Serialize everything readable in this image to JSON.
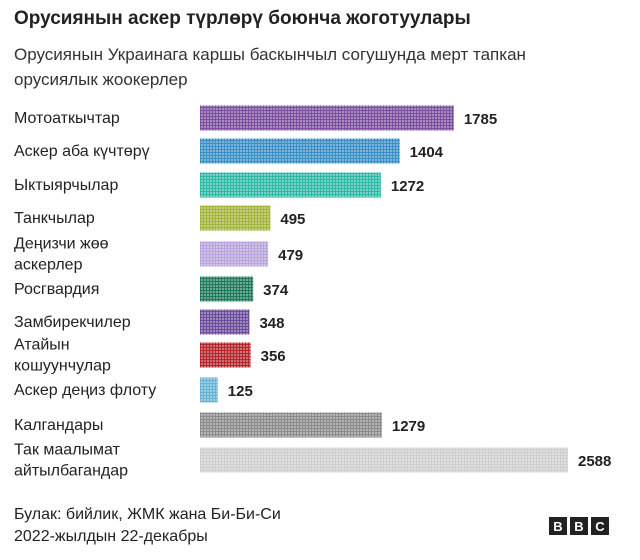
{
  "chart_data": {
    "type": "bar",
    "title": "Орусиянын аскер түрлөрү боюнча жоготуулары",
    "subtitle": "Орусиянын Украинага каршы баскынчыл согушунда мерт тапкан орусиялык жоокерлер",
    "categories": [
      [
        "Мотоаткычтар"
      ],
      [
        "Аскер аба күчтөрү"
      ],
      [
        "Ыктыярчылар"
      ],
      [
        "Танкчылар"
      ],
      [
        "Деңизчи жөө",
        "аскерлер"
      ],
      [
        "Росгвардия"
      ],
      [
        "Замбирекчилер"
      ],
      [
        "Атайын",
        "кошуунчулар"
      ],
      [
        "Аскер деңиз флоту"
      ],
      [
        "Калгандары"
      ],
      [
        "Так маалымат",
        "айтылбагандар"
      ]
    ],
    "values": [
      1785,
      1404,
      1272,
      495,
      479,
      374,
      348,
      356,
      125,
      1279,
      2588
    ],
    "value_labels": [
      "1785",
      "1404",
      "1272",
      "495",
      "479",
      "374",
      "348",
      "356",
      "125",
      "1279",
      "2588"
    ],
    "colors": [
      "#7b4f9d",
      "#3a8fc4",
      "#2fb9a7",
      "#a3b53a",
      "#b8a3dc",
      "#1f7a5c",
      "#6b4c9a",
      "#b5262b",
      "#66b3d6",
      "#8c8c8c",
      "#cfcfcf"
    ],
    "xlim": [
      0,
      2588
    ],
    "grid": false,
    "legend": "none"
  },
  "footer": {
    "source": "Булак: бийлик, ЖМК жана Би-Би-Си",
    "date": "2022-жылдын 22-декабры"
  },
  "logo": {
    "letters": [
      "B",
      "B",
      "C"
    ]
  }
}
